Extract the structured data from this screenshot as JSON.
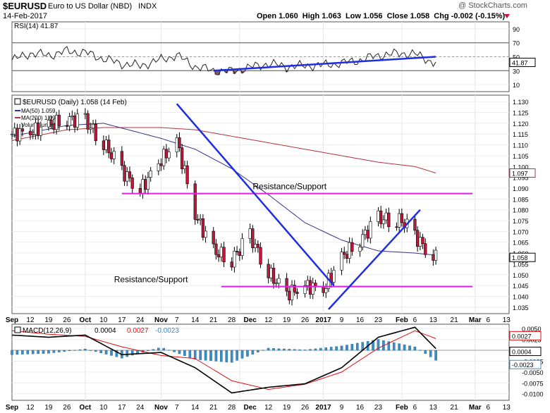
{
  "header": {
    "symbol": "$EURUSD",
    "name": "Euro to US Dollar (NBD)",
    "exchange": "INDX",
    "date": "14-Feb-2017",
    "ohlc": "Open 1.060  High 1.063  Low 1.056  Close 1.058  Chg -0.002 (-0.15%)",
    "watermark": "@ StockCharts.com"
  },
  "colors": {
    "candle_up": "#ffffff",
    "candle_down": "#c4163b",
    "ma50": "#33338a",
    "ma200": "#b0333a",
    "trendline": "#1e2ee0",
    "support": "#e21de8",
    "rsi_fill": "#8e5b5b",
    "macd_line": "#000000",
    "signal_line": "#e01010",
    "histogram": "#3a8ec4"
  },
  "chart_data": [
    {
      "type": "line",
      "panel": "rsi",
      "title": "RSI(14) 41.87",
      "current_value": "41.87",
      "yticks": [
        "90",
        "70",
        "50",
        "30",
        "10"
      ],
      "ylim": [
        0,
        100
      ],
      "levels": [
        70,
        30
      ],
      "x_dates": [
        "Sep 5",
        "Sep 12",
        "Sep 19",
        "Sep 26",
        "Oct 3",
        "Oct 10",
        "Oct 17",
        "Oct 24",
        "Nov 1",
        "Nov 7",
        "Nov 14",
        "Nov 21",
        "Nov 28",
        "Dec 5",
        "Dec 12",
        "Dec 19",
        "Dec 26",
        "Jan 2",
        "Jan 9",
        "Jan 16",
        "Jan 23",
        "Feb 1",
        "Feb 6",
        "Feb 13"
      ],
      "values": [
        45,
        55,
        52,
        58,
        56,
        47,
        40,
        37,
        46,
        52,
        36,
        30,
        29,
        35,
        40,
        36,
        37,
        38,
        41,
        45,
        52,
        55,
        54,
        42
      ],
      "trendline": {
        "from": [
          "Nov 21",
          30
        ],
        "to": [
          "Feb 14",
          50
        ]
      }
    },
    {
      "type": "candlestick",
      "panel": "price",
      "legend": [
        "$EURUSD (Daily) 1.058 (14 Feb)",
        "MA(50) 1.059",
        "MA(200) 1.097",
        "Volume undef"
      ],
      "current_value": "1.058",
      "ma200_value": "1.097",
      "yticks": [
        "1.130",
        "1.125",
        "1.120",
        "1.115",
        "1.110",
        "1.105",
        "1.100",
        "1.095",
        "1.090",
        "1.085",
        "1.080",
        "1.075",
        "1.070",
        "1.065",
        "1.060",
        "1.055",
        "1.050",
        "1.045",
        "1.040",
        "1.035"
      ],
      "ylim": [
        1.032,
        1.133
      ],
      "close_dates": [
        "Sep 5",
        "Sep 12",
        "Sep 19",
        "Sep 26",
        "Oct 3",
        "Oct 10",
        "Oct 17",
        "Oct 24",
        "Nov 1",
        "Nov 7",
        "Nov 14",
        "Nov 21",
        "Nov 28",
        "Dec 5",
        "Dec 12",
        "Dec 19",
        "Dec 26",
        "Jan 2",
        "Jan 9",
        "Jan 16",
        "Jan 23",
        "Feb 1",
        "Feb 6",
        "Feb 13"
      ],
      "close": [
        1.115,
        1.116,
        1.119,
        1.122,
        1.121,
        1.111,
        1.098,
        1.089,
        1.103,
        1.112,
        1.078,
        1.061,
        1.057,
        1.068,
        1.051,
        1.041,
        1.045,
        1.043,
        1.058,
        1.066,
        1.076,
        1.075,
        1.068,
        1.058
      ],
      "ma50_dates": [
        "Sep 5",
        "Sep 26",
        "Oct 10",
        "Nov 1",
        "Nov 14",
        "Nov 28",
        "Dec 12",
        "Dec 26",
        "Jan 9",
        "Jan 23",
        "Feb 6",
        "Feb 14"
      ],
      "ma50": [
        1.114,
        1.119,
        1.12,
        1.113,
        1.108,
        1.099,
        1.087,
        1.074,
        1.066,
        1.061,
        1.06,
        1.059
      ],
      "ma200_dates": [
        "Sep 5",
        "Sep 26",
        "Oct 10",
        "Nov 1",
        "Nov 14",
        "Nov 28",
        "Dec 12",
        "Dec 26",
        "Jan 9",
        "Jan 23",
        "Feb 6",
        "Feb 14"
      ],
      "ma200": [
        1.112,
        1.117,
        1.118,
        1.118,
        1.117,
        1.114,
        1.111,
        1.108,
        1.105,
        1.102,
        1.1,
        1.097
      ],
      "annotations": [
        {
          "text": "Resistance/Support",
          "level": 1.0875,
          "from": "Oct 17",
          "to": "Feb 28"
        },
        {
          "text": "Resistance/Support",
          "level": 1.0445,
          "from": "Nov 24",
          "to": "Feb 28"
        }
      ],
      "trendlines": [
        {
          "from": [
            "Nov 7",
            1.129
          ],
          "to": [
            "Jan 6",
            1.045
          ]
        },
        {
          "from": [
            "Jan 4",
            1.034
          ],
          "to": [
            "Feb 8",
            1.08
          ]
        }
      ]
    },
    {
      "type": "line",
      "panel": "macd",
      "title": "MACD(12,26,9) 0.0004, 0.0027, -0.0023",
      "legend": [
        "MACD(12,26,9)",
        "0.0004",
        "0.0027",
        "-0.0023"
      ],
      "yticks": [
        "0.0050",
        "0.0025",
        "0.0000",
        "-0.0025",
        "-0.0050",
        "-0.0075",
        "-0.0100"
      ],
      "ylim": [
        -0.0115,
        0.006
      ],
      "markers": [
        "0.0027",
        "0.0004",
        "-0.0023"
      ],
      "x_dates": [
        "Sep 5",
        "Sep 19",
        "Oct 3",
        "Oct 17",
        "Nov 1",
        "Nov 14",
        "Nov 28",
        "Dec 12",
        "Dec 26",
        "Jan 9",
        "Jan 23",
        "Feb 6",
        "Feb 14"
      ],
      "macd": [
        0.0035,
        0.003,
        0.0035,
        -0.001,
        -0.0005,
        -0.004,
        -0.0098,
        -0.0085,
        -0.0077,
        -0.004,
        0.003,
        0.0053,
        0.0004
      ],
      "signal": [
        0.0045,
        0.0037,
        0.0032,
        0.0008,
        -0.0012,
        -0.0019,
        -0.007,
        -0.009,
        -0.0078,
        -0.005,
        0.0005,
        0.0045,
        0.0027
      ],
      "histogram": [
        -0.001,
        -0.0007,
        0.0003,
        -0.0018,
        0.0007,
        -0.0021,
        -0.0028,
        0.0005,
        0.0001,
        0.001,
        0.0025,
        0.0008,
        -0.0023
      ]
    }
  ],
  "x_axis": {
    "labels": [
      "Sep",
      "12",
      "19",
      "26",
      "Oct",
      "10",
      "17",
      "24",
      "Nov",
      "7",
      "14",
      "21",
      "28",
      "Dec",
      "12",
      "19",
      "26",
      "2017",
      "9",
      "16",
      "23",
      "Feb",
      "6",
      "13",
      "21",
      "Mar",
      "6",
      "13"
    ]
  }
}
